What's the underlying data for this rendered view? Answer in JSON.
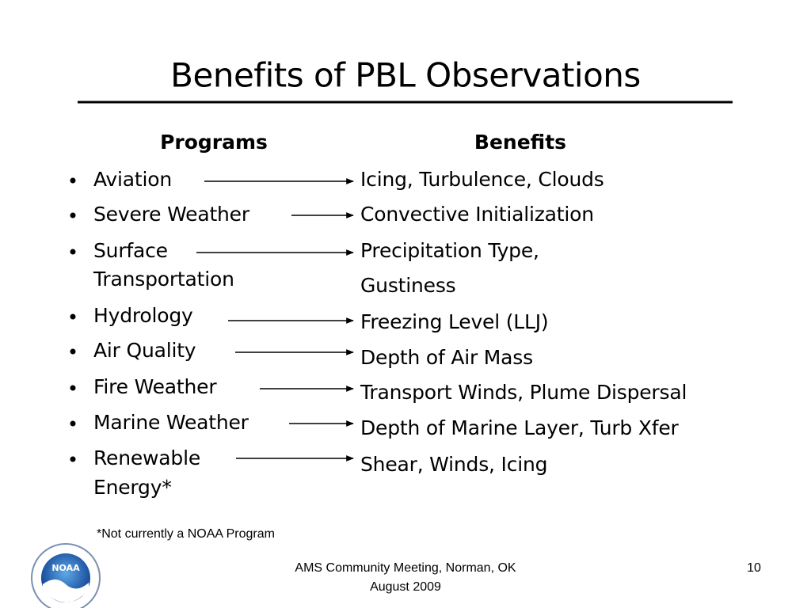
{
  "title": "Benefits of PBL Observations",
  "headers": {
    "programs": "Programs",
    "benefits": "Benefits"
  },
  "programs": [
    {
      "lines": [
        "Aviation"
      ]
    },
    {
      "lines": [
        "Severe Weather"
      ]
    },
    {
      "lines": [
        "Surface",
        "Transportation"
      ]
    },
    {
      "lines": [
        "Hydrology"
      ]
    },
    {
      "lines": [
        "Air Quality"
      ]
    },
    {
      "lines": [
        "Fire Weather"
      ]
    },
    {
      "lines": [
        "Marine Weather"
      ]
    },
    {
      "lines": [
        "Renewable",
        "Energy*"
      ]
    }
  ],
  "benefits": [
    {
      "lines": [
        "Icing, Turbulence, Clouds"
      ]
    },
    {
      "lines": [
        "Convective Initialization"
      ]
    },
    {
      "lines": [
        "Precipitation Type,",
        "Gustiness"
      ]
    },
    {
      "lines": [
        "Freezing Level (LLJ)"
      ]
    },
    {
      "lines": [
        "Depth of Air Mass"
      ]
    },
    {
      "lines": [
        "Transport Winds, Plume Dispersal"
      ]
    },
    {
      "lines": [
        "Depth of Marine Layer, Turb Xfer"
      ]
    },
    {
      "lines": [
        "Shear, Winds, Icing"
      ]
    }
  ],
  "footnote": "*Not currently a NOAA Program",
  "footer": {
    "lines": [
      "AMS Community Meeting, Norman, OK",
      "August 2009"
    ],
    "page": "10"
  },
  "logo": {
    "label": "NOAA"
  }
}
